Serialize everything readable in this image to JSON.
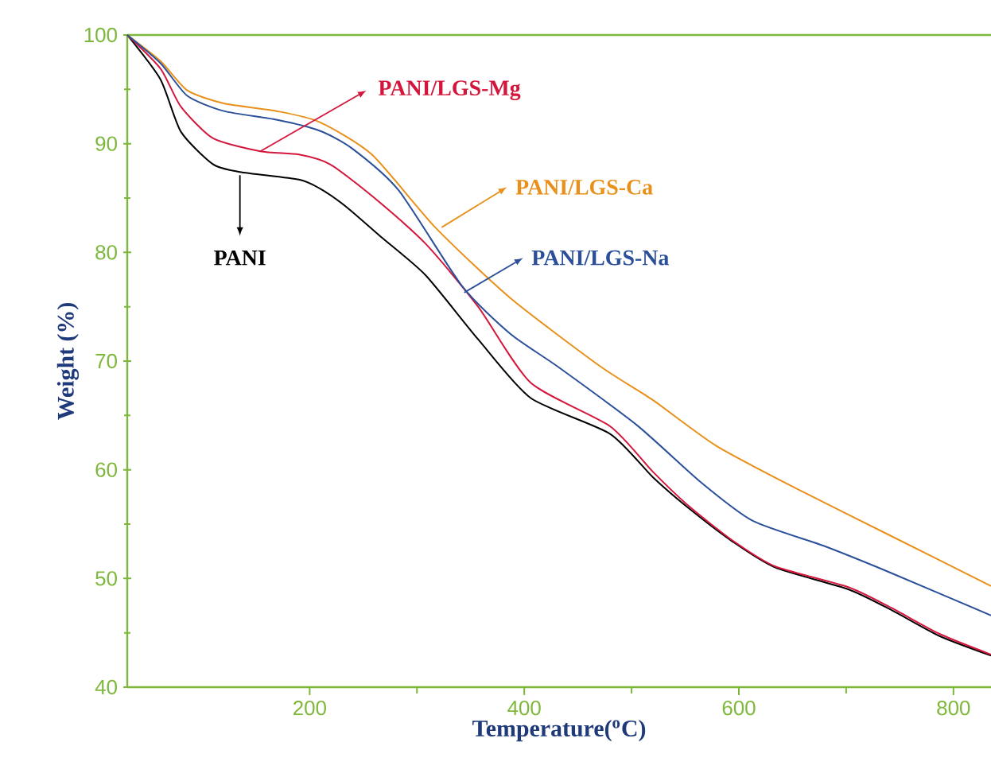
{
  "chart_data": {
    "type": "line",
    "xlabel": "Temperature($^{o}$C)",
    "ylabel": "Weight (%)",
    "legend": "top",
    "xlim": [
      30,
      835
    ],
    "ylim": [
      40,
      100
    ],
    "xticks": [
      200,
      400,
      600,
      800
    ],
    "yticks": [
      40,
      50,
      60,
      70,
      80,
      90,
      100
    ],
    "series": [
      {
        "name": "PANI",
        "color": "#000000",
        "x": [
          30,
          61,
          80,
          110,
          135,
          190,
          209,
          234,
          268,
          308,
          357,
          406,
          480,
          520,
          554,
          594,
          634,
          702,
          742,
          787,
          835
        ],
        "values": [
          100,
          95.9,
          91.1,
          88.1,
          87.4,
          86.7,
          85.9,
          84.2,
          81.3,
          77.9,
          72.0,
          66.6,
          63.3,
          59.3,
          56.4,
          53.4,
          51.0,
          49.0,
          47.1,
          44.7,
          42.9
        ]
      },
      {
        "name": "PANI/LGS-Mg",
        "color": "#d4163c",
        "x": [
          30,
          61,
          80,
          110,
          154,
          190,
          219,
          258,
          308,
          357,
          406,
          480,
          520,
          554,
          594,
          634,
          702,
          742,
          787,
          835
        ],
        "values": [
          100,
          96.9,
          93.4,
          90.5,
          89.3,
          89.0,
          88.1,
          85.2,
          80.8,
          75.0,
          68.0,
          64.0,
          59.8,
          56.6,
          53.5,
          51.1,
          49.2,
          47.3,
          44.9,
          43.0
        ]
      },
      {
        "name": "PANI/LGS-Ca",
        "color": "#e8901a",
        "x": [
          30,
          61,
          86,
          120,
          169,
          209,
          258,
          317,
          387,
          471,
          520,
          579,
          653,
          742,
          835
        ],
        "values": [
          100,
          97.6,
          94.9,
          93.7,
          93.0,
          92.0,
          89.0,
          82.3,
          75.8,
          69.5,
          66.4,
          62.2,
          58.3,
          53.9,
          49.3
        ]
      },
      {
        "name": "PANI/LGS-Na",
        "color": "#2b4f9a",
        "x": [
          30,
          61,
          86,
          120,
          169,
          209,
          239,
          283,
          342,
          387,
          431,
          505,
          564,
          613,
          679,
          742,
          835
        ],
        "values": [
          100,
          97.4,
          94.4,
          93.0,
          92.2,
          91.2,
          89.6,
          85.7,
          76.9,
          72.5,
          69.5,
          64.1,
          58.9,
          55.3,
          53.0,
          50.5,
          46.6
        ]
      }
    ]
  }
}
